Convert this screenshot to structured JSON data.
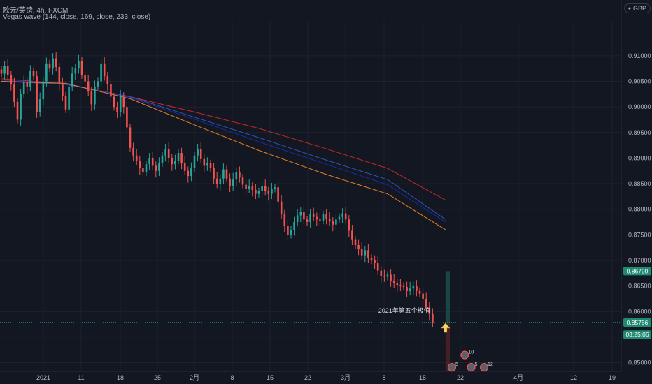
{
  "header": {
    "title": "欧元/英镑, 4h, FXCM",
    "indicator": "Vegas wave (144, close, 169, close, 233, close)"
  },
  "currency_button": {
    "label": "GBP",
    "icon": "circle-icon"
  },
  "colors": {
    "background": "#131722",
    "grid": "#1e222d",
    "axis_text": "#b2b5be",
    "up_candle": "#26a69a",
    "down_candle": "#ef5350",
    "ema144": "#1c2aa6",
    "ema169": "#2d56b8",
    "ema233": "#c62828",
    "ema_orange": "#e67e22",
    "profit_zone": "#1c4a49",
    "loss_zone": "#4a2025",
    "badge_green": "#1f8a70",
    "badge_dark": "#2a2e39"
  },
  "chart_data": {
    "type": "candlestick",
    "symbol": "欧元/英镑",
    "timeframe": "4h",
    "source": "FXCM",
    "ylim": [
      0.8483,
      0.9168
    ],
    "y_ticks": [
      "0.91000",
      "0.90500",
      "0.90000",
      "0.89500",
      "0.89000",
      "0.88500",
      "0.88000",
      "0.87500",
      "0.87000",
      "0.86500",
      "0.86000",
      "0.85500",
      "0.85000"
    ],
    "x_ticks": [
      "2021",
      "11",
      "18",
      "25",
      "2月",
      "8",
      "15",
      "22",
      "3月",
      "8",
      "15",
      "22",
      "4月",
      "12",
      "19"
    ],
    "close_path": [
      0.9065,
      0.908,
      0.9062,
      0.9045,
      0.901,
      0.8975,
      0.9025,
      0.9048,
      0.904,
      0.907,
      0.906,
      0.899,
      0.9015,
      0.905,
      0.9085,
      0.9075,
      0.9095,
      0.9078,
      0.9045,
      0.9022,
      0.8995,
      0.904,
      0.9065,
      0.9075,
      0.909,
      0.9062,
      0.905,
      0.903,
      0.9005,
      0.904,
      0.905,
      0.9085,
      0.906,
      0.9045,
      0.902,
      0.9,
      0.899,
      0.902,
      0.9,
      0.896,
      0.892,
      0.8905,
      0.8895,
      0.888,
      0.8872,
      0.8888,
      0.89,
      0.8885,
      0.8875,
      0.889,
      0.8905,
      0.8918,
      0.89,
      0.8888,
      0.8895,
      0.891,
      0.889,
      0.8875,
      0.8865,
      0.888,
      0.8905,
      0.8918,
      0.8898,
      0.8885,
      0.889,
      0.888,
      0.886,
      0.885,
      0.886,
      0.8878,
      0.886,
      0.8845,
      0.8858,
      0.8872,
      0.8862,
      0.8848,
      0.884,
      0.8845,
      0.8838,
      0.883,
      0.8835,
      0.8845,
      0.8835,
      0.883,
      0.884,
      0.8843,
      0.8815,
      0.879,
      0.8768,
      0.875,
      0.876,
      0.8775,
      0.8788,
      0.8795,
      0.878,
      0.8775,
      0.879,
      0.8785,
      0.878,
      0.8778,
      0.879,
      0.8782,
      0.8776,
      0.877,
      0.878,
      0.8785,
      0.8792,
      0.878,
      0.8758,
      0.874,
      0.873,
      0.8722,
      0.871,
      0.872,
      0.8705,
      0.87,
      0.8695,
      0.868,
      0.867,
      0.8668,
      0.8672,
      0.866,
      0.8655,
      0.8652,
      0.865,
      0.8648,
      0.864,
      0.8645,
      0.865,
      0.864,
      0.8635,
      0.8625,
      0.861,
      0.8595,
      0.8579
    ],
    "ema_lines": [
      {
        "name": "ema233",
        "color": "#c62828",
        "points": [
          [
            0,
            0.9055
          ],
          [
            20,
            0.9045
          ],
          [
            40,
            0.902
          ],
          [
            60,
            0.899
          ],
          [
            80,
            0.8958
          ],
          [
            100,
            0.892
          ],
          [
            120,
            0.888
          ],
          [
            138,
            0.8818
          ]
        ]
      },
      {
        "name": "ema169",
        "color": "#2d56b8",
        "points": [
          [
            0,
            0.905
          ],
          [
            20,
            0.9044
          ],
          [
            40,
            0.902
          ],
          [
            60,
            0.898
          ],
          [
            80,
            0.894
          ],
          [
            100,
            0.8898
          ],
          [
            120,
            0.8858
          ],
          [
            138,
            0.878
          ]
        ]
      },
      {
        "name": "ema144",
        "color": "#1c2aa6",
        "points": [
          [
            0,
            0.9052
          ],
          [
            20,
            0.9046
          ],
          [
            40,
            0.9018
          ],
          [
            60,
            0.8976
          ],
          [
            80,
            0.8932
          ],
          [
            100,
            0.889
          ],
          [
            120,
            0.8848
          ],
          [
            138,
            0.8775
          ]
        ]
      },
      {
        "name": "ema_orange",
        "color": "#e67e22",
        "points": [
          [
            0,
            0.905
          ],
          [
            20,
            0.9046
          ],
          [
            40,
            0.9016
          ],
          [
            60,
            0.8965
          ],
          [
            80,
            0.8915
          ],
          [
            100,
            0.887
          ],
          [
            120,
            0.883
          ],
          [
            138,
            0.876
          ]
        ]
      }
    ],
    "position": {
      "entry": 0.8579,
      "target": 0.8679,
      "stop": 0.8482,
      "x_start_index": 138,
      "x_end_index": 195
    },
    "annotation": {
      "text": "2021年第五个极值",
      "index": 138,
      "price": 0.858
    },
    "price_badges": [
      {
        "label": "0.86790",
        "price": 0.8679,
        "style": "green"
      },
      {
        "label": "0.85790",
        "price": 0.8579,
        "style": "dark"
      },
      {
        "label": "0.85786",
        "price": 0.85786,
        "style": "green"
      },
      {
        "label": "03:25:06",
        "price": 0.8555,
        "style": "green"
      }
    ],
    "event_markers": [
      {
        "label": "10",
        "index": 144,
        "price": 0.8515
      },
      {
        "label": "5",
        "index": 140,
        "price": 0.8491
      },
      {
        "label": "5",
        "index": 146,
        "price": 0.8491
      },
      {
        "label": "12",
        "index": 150,
        "price": 0.8491
      }
    ],
    "grid": true
  }
}
